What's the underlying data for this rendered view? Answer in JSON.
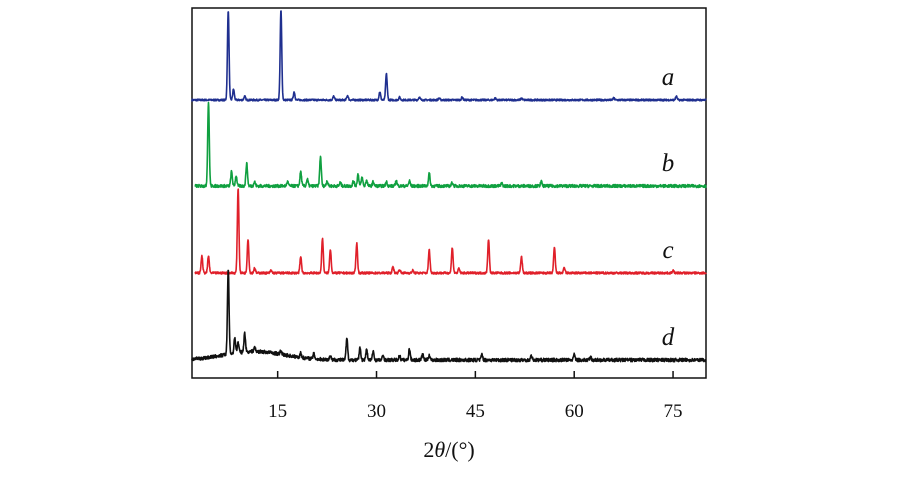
{
  "chart_data": {
    "type": "line",
    "title": "",
    "xlabel_parts": {
      "prefix": "2",
      "var": "θ",
      "suffix": "/(°)"
    },
    "ylabel": "",
    "xlim": [
      2,
      80
    ],
    "xticks": [
      15,
      30,
      45,
      60,
      75
    ],
    "xtick_labels": [
      "15",
      "30",
      "45",
      "60",
      "75"
    ],
    "y_axis_ticks": false,
    "grid": false,
    "legend": "none",
    "layout": "stacked-offset",
    "baseline_noise": [
      0.02,
      0.035,
      0.025,
      0.04
    ],
    "series": [
      {
        "name": "a",
        "color": "#1f2f8f",
        "peaks": [
          [
            7.5,
            1.0
          ],
          [
            8.3,
            0.12
          ],
          [
            10.0,
            0.04
          ],
          [
            15.5,
            1.0
          ],
          [
            17.5,
            0.09
          ],
          [
            23.5,
            0.04
          ],
          [
            25.6,
            0.05
          ],
          [
            30.5,
            0.09
          ],
          [
            31.5,
            0.29
          ],
          [
            33.5,
            0.03
          ],
          [
            36.5,
            0.03
          ],
          [
            39.5,
            0.02
          ],
          [
            43.0,
            0.03
          ],
          [
            48.0,
            0.02
          ],
          [
            52.0,
            0.02
          ],
          [
            66.0,
            0.02
          ],
          [
            75.5,
            0.04
          ]
        ]
      },
      {
        "name": "b",
        "color": "#10a040",
        "peaks": [
          [
            4.5,
            1.0
          ],
          [
            8.0,
            0.17
          ],
          [
            8.7,
            0.12
          ],
          [
            10.3,
            0.27
          ],
          [
            11.5,
            0.05
          ],
          [
            16.5,
            0.05
          ],
          [
            18.5,
            0.17
          ],
          [
            19.5,
            0.08
          ],
          [
            21.5,
            0.35
          ],
          [
            22.5,
            0.06
          ],
          [
            24.5,
            0.04
          ],
          [
            26.5,
            0.06
          ],
          [
            27.2,
            0.14
          ],
          [
            27.8,
            0.1
          ],
          [
            28.5,
            0.07
          ],
          [
            29.5,
            0.05
          ],
          [
            31.5,
            0.05
          ],
          [
            33.0,
            0.06
          ],
          [
            35.0,
            0.06
          ],
          [
            38.0,
            0.15
          ],
          [
            41.5,
            0.04
          ],
          [
            49.0,
            0.03
          ],
          [
            55.0,
            0.05
          ]
        ]
      },
      {
        "name": "c",
        "color": "#e0202a",
        "peaks": [
          [
            3.5,
            0.2
          ],
          [
            4.5,
            0.2
          ],
          [
            9.0,
            1.0
          ],
          [
            10.5,
            0.4
          ],
          [
            11.5,
            0.06
          ],
          [
            14.0,
            0.03
          ],
          [
            18.5,
            0.19
          ],
          [
            21.8,
            0.41
          ],
          [
            23.0,
            0.28
          ],
          [
            27.0,
            0.35
          ],
          [
            32.5,
            0.07
          ],
          [
            33.5,
            0.04
          ],
          [
            35.5,
            0.03
          ],
          [
            38.0,
            0.27
          ],
          [
            41.5,
            0.3
          ],
          [
            42.5,
            0.05
          ],
          [
            47.0,
            0.4
          ],
          [
            52.0,
            0.19
          ],
          [
            57.0,
            0.3
          ],
          [
            58.5,
            0.06
          ],
          [
            75.0,
            0.03
          ]
        ]
      },
      {
        "name": "d",
        "color": "#111111",
        "hump": {
          "center": 11.5,
          "width": 4.5,
          "height": 0.1
        },
        "peaks": [
          [
            7.5,
            1.0
          ],
          [
            8.5,
            0.18
          ],
          [
            9.0,
            0.12
          ],
          [
            10.0,
            0.22
          ],
          [
            11.5,
            0.05
          ],
          [
            15.5,
            0.04
          ],
          [
            18.5,
            0.05
          ],
          [
            20.5,
            0.06
          ],
          [
            23.0,
            0.05
          ],
          [
            25.5,
            0.25
          ],
          [
            27.5,
            0.14
          ],
          [
            28.5,
            0.12
          ],
          [
            29.5,
            0.1
          ],
          [
            31.0,
            0.05
          ],
          [
            33.5,
            0.05
          ],
          [
            35.0,
            0.13
          ],
          [
            37.0,
            0.07
          ],
          [
            38.0,
            0.06
          ],
          [
            46.0,
            0.06
          ],
          [
            53.5,
            0.05
          ],
          [
            60.0,
            0.06
          ],
          [
            62.5,
            0.03
          ]
        ]
      }
    ]
  }
}
